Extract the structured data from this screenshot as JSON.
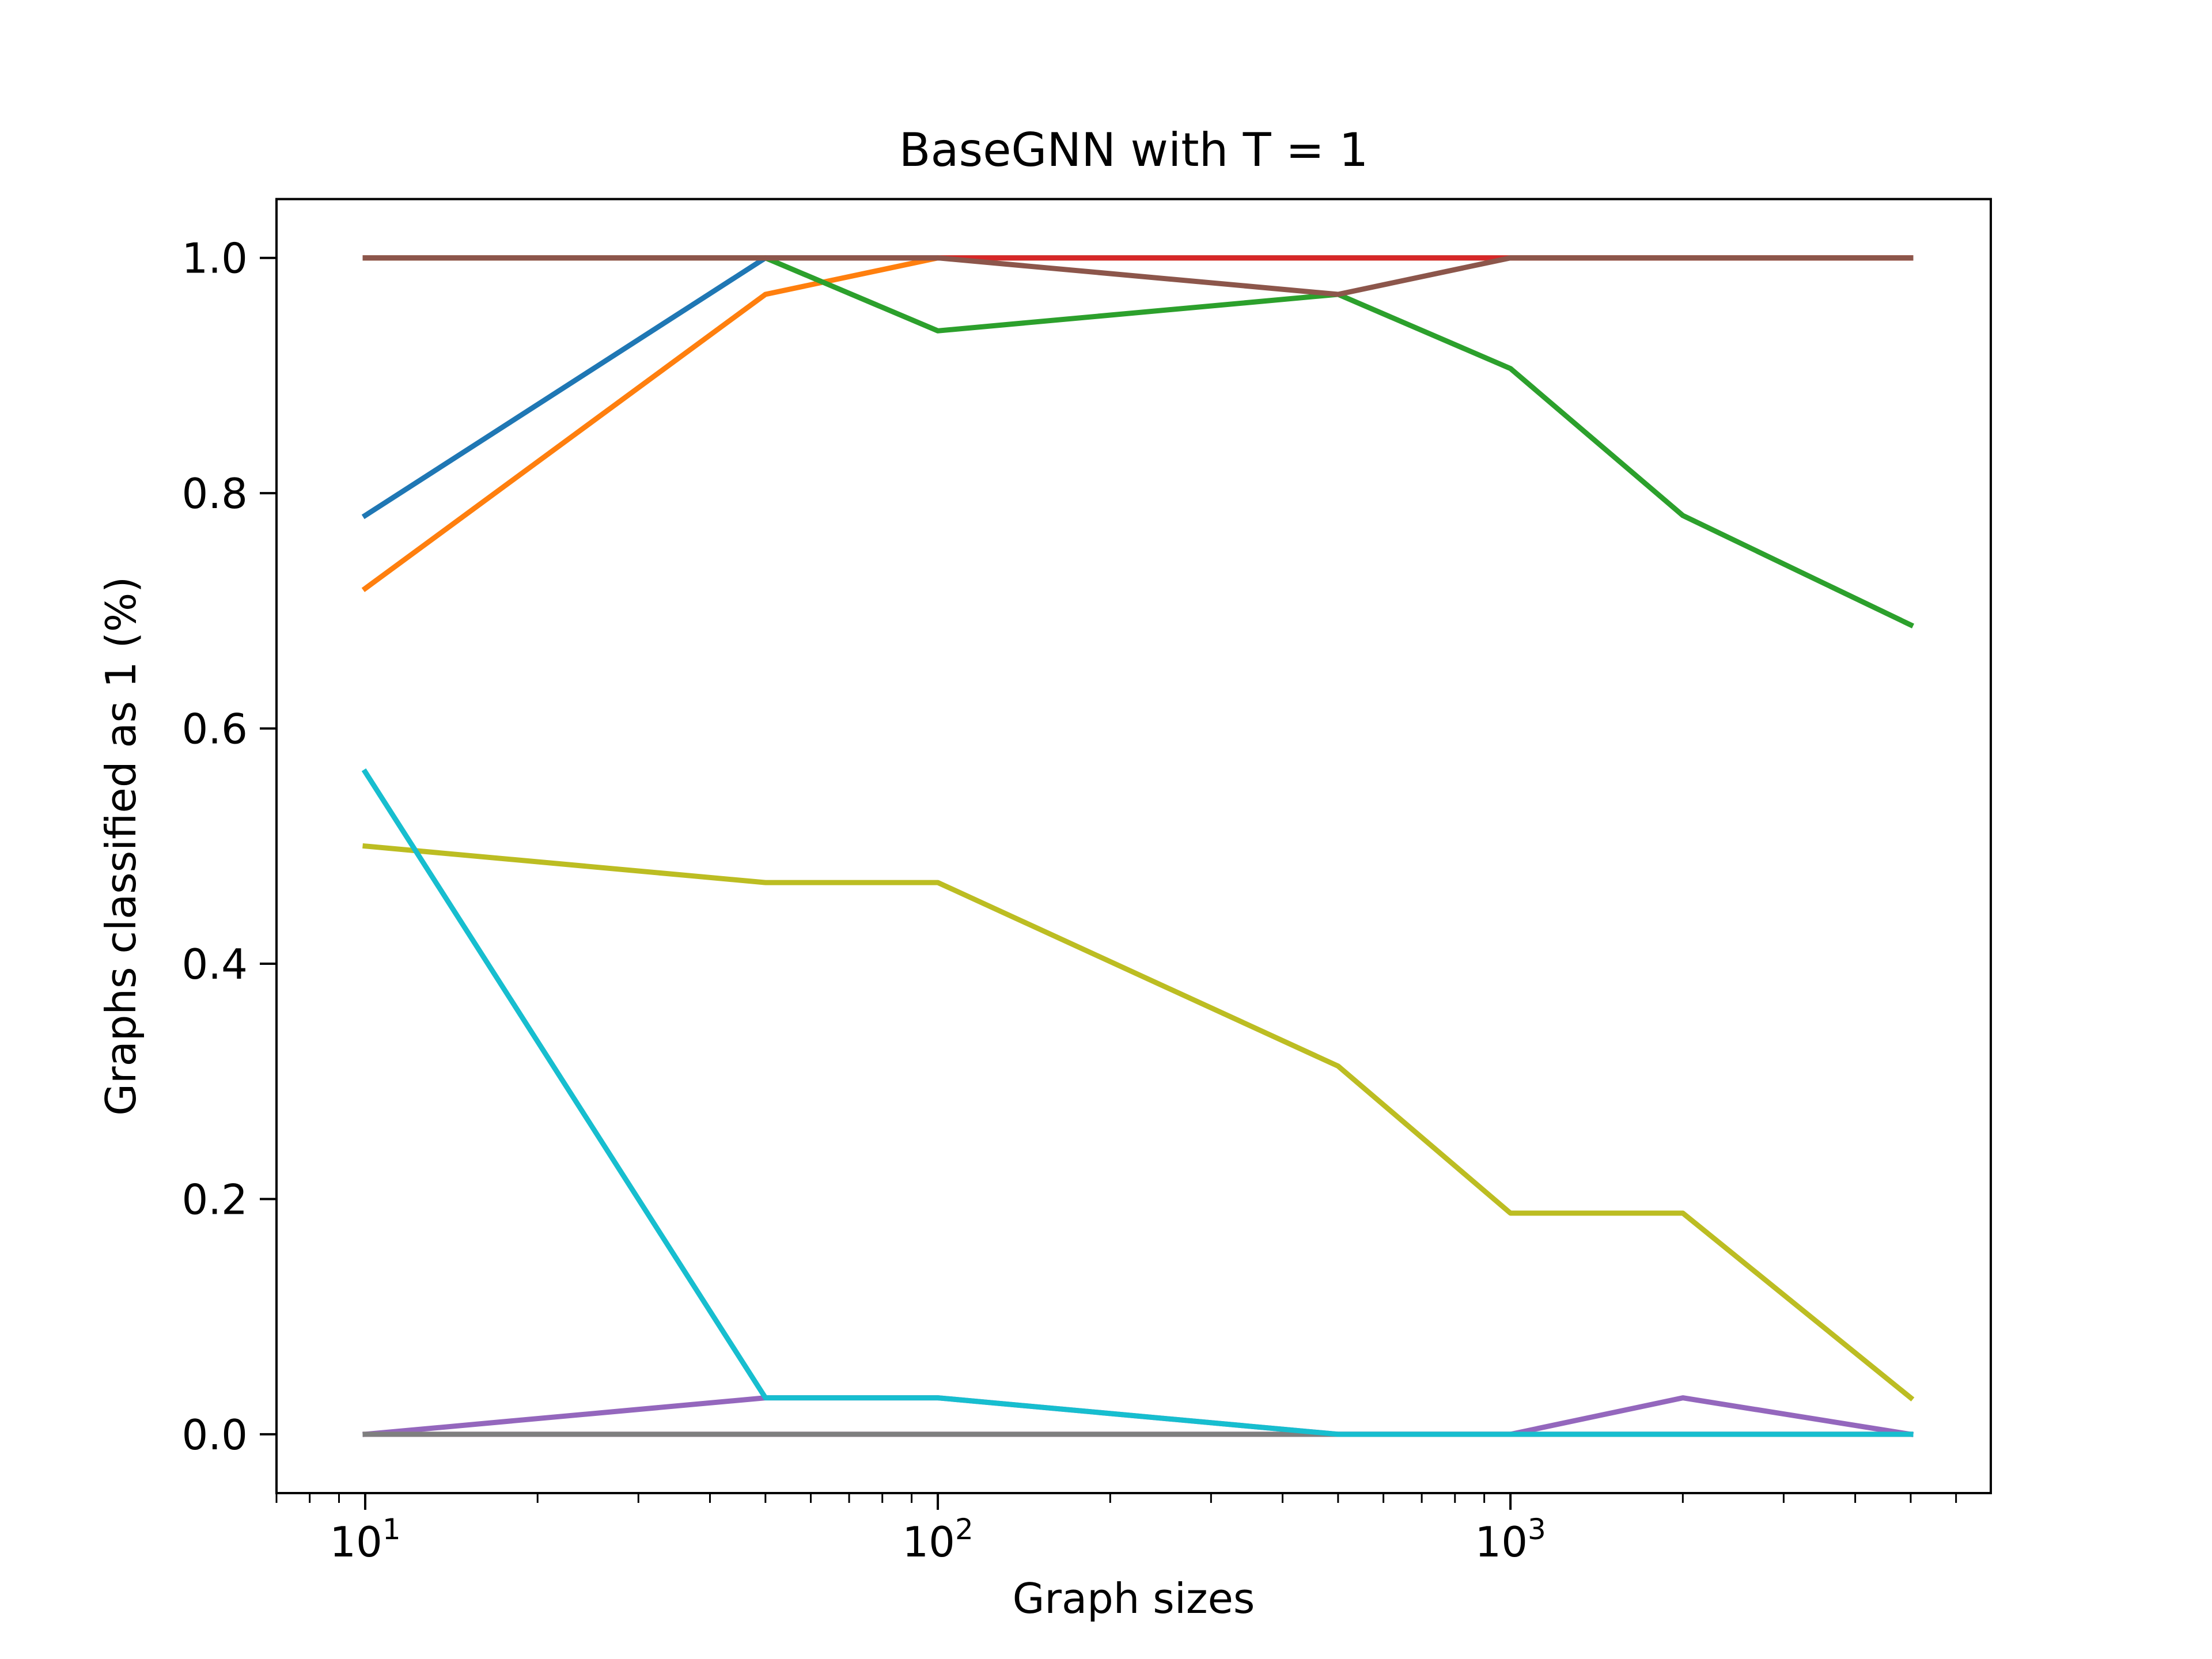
{
  "chart_data": {
    "type": "line",
    "title": "BaseGNN with T = 1",
    "xlabel": "Graph sizes",
    "ylabel": "Graphs classified as 1 (%)",
    "xscale": "log",
    "xlim": [
      7,
      6900
    ],
    "ylim": [
      -0.05,
      1.05
    ],
    "x": [
      10,
      50,
      100,
      500,
      1000,
      2000,
      5000
    ],
    "xticks": [
      {
        "value": 10,
        "base": "10",
        "exp": "1"
      },
      {
        "value": 100,
        "base": "10",
        "exp": "2"
      },
      {
        "value": 1000,
        "base": "10",
        "exp": "3"
      }
    ],
    "yticks": [
      {
        "value": 0.0,
        "label": "0.0"
      },
      {
        "value": 0.2,
        "label": "0.2"
      },
      {
        "value": 0.4,
        "label": "0.4"
      },
      {
        "value": 0.6,
        "label": "0.6"
      },
      {
        "value": 0.8,
        "label": "0.8"
      },
      {
        "value": 1.0,
        "label": "1.0"
      }
    ],
    "grid": false,
    "series": [
      {
        "color": "#1f77b4",
        "values": [
          0.781,
          1.0,
          1.0,
          1.0,
          1.0,
          1.0,
          1.0
        ]
      },
      {
        "color": "#ff7f0e",
        "values": [
          0.719,
          0.969,
          1.0,
          1.0,
          1.0,
          1.0,
          1.0
        ]
      },
      {
        "color": "#2ca02c",
        "values": [
          1.0,
          1.0,
          0.938,
          0.969,
          0.906,
          0.781,
          0.688
        ]
      },
      {
        "color": "#d62728",
        "values": [
          1.0,
          1.0,
          1.0,
          1.0,
          1.0,
          1.0,
          1.0
        ]
      },
      {
        "color": "#9467bd",
        "values": [
          0.0,
          0.031,
          0.031,
          0.0,
          0.0,
          0.031,
          0.0
        ]
      },
      {
        "color": "#8c564b",
        "values": [
          1.0,
          1.0,
          1.0,
          0.969,
          1.0,
          1.0,
          1.0
        ]
      },
      {
        "color": "#e377c2",
        "values": [
          0.0,
          0.0,
          0.0,
          0.0,
          0.0,
          0.0,
          0.0
        ]
      },
      {
        "color": "#7f7f7f",
        "values": [
          0.0,
          0.0,
          0.0,
          0.0,
          0.0,
          0.0,
          0.0
        ]
      },
      {
        "color": "#bcbd22",
        "values": [
          0.5,
          0.469,
          0.469,
          0.313,
          0.188,
          0.188,
          0.031
        ]
      },
      {
        "color": "#17becf",
        "values": [
          0.563,
          0.031,
          0.031,
          0.0,
          0.0,
          0.0,
          0.0
        ]
      }
    ]
  }
}
